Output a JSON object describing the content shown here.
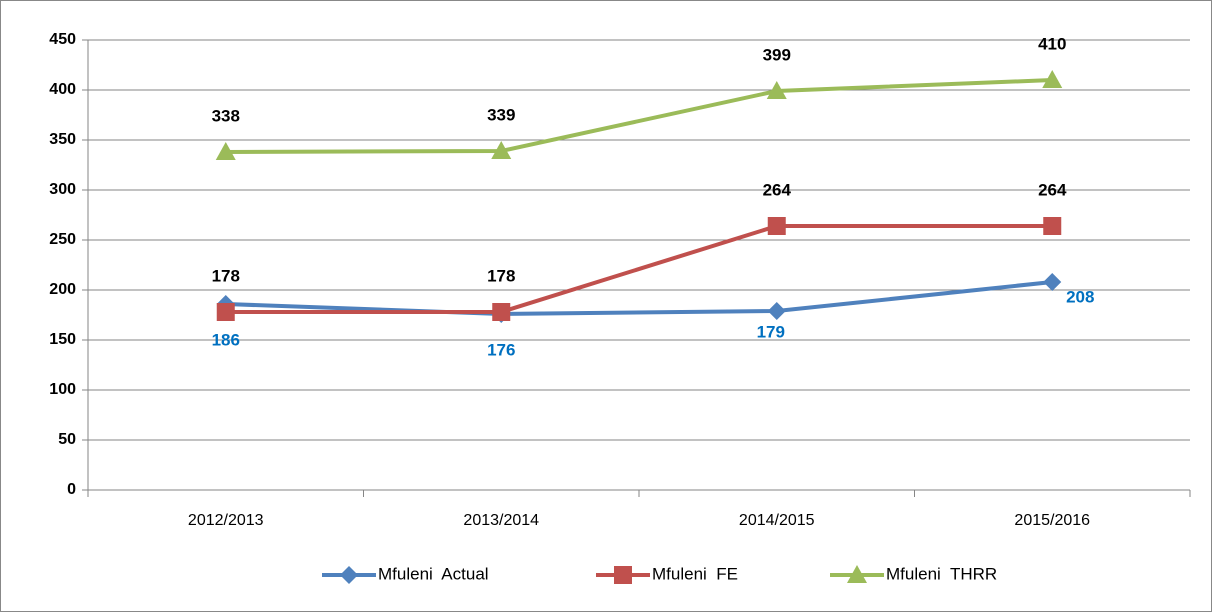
{
  "chart_data": {
    "type": "line",
    "categories": [
      "2012/2013",
      "2013/2014",
      "2014/2015",
      "2015/2016"
    ],
    "series": [
      {
        "name": "Mfuleni  Actual",
        "color": "#4f81bd",
        "marker": "diamond",
        "values": [
          186,
          176,
          179,
          208
        ]
      },
      {
        "name": "Mfuleni  FE",
        "color": "#c0504d",
        "marker": "square",
        "values": [
          178,
          178,
          264,
          264
        ]
      },
      {
        "name": "Mfuleni  THRR",
        "color": "#9bbb59",
        "marker": "triangle",
        "values": [
          338,
          339,
          399,
          410
        ]
      }
    ],
    "ylim": [
      0,
      450
    ],
    "yticks": [
      0,
      50,
      100,
      150,
      200,
      250,
      300,
      350,
      400,
      450
    ],
    "grid": true,
    "legend": "bottom"
  }
}
